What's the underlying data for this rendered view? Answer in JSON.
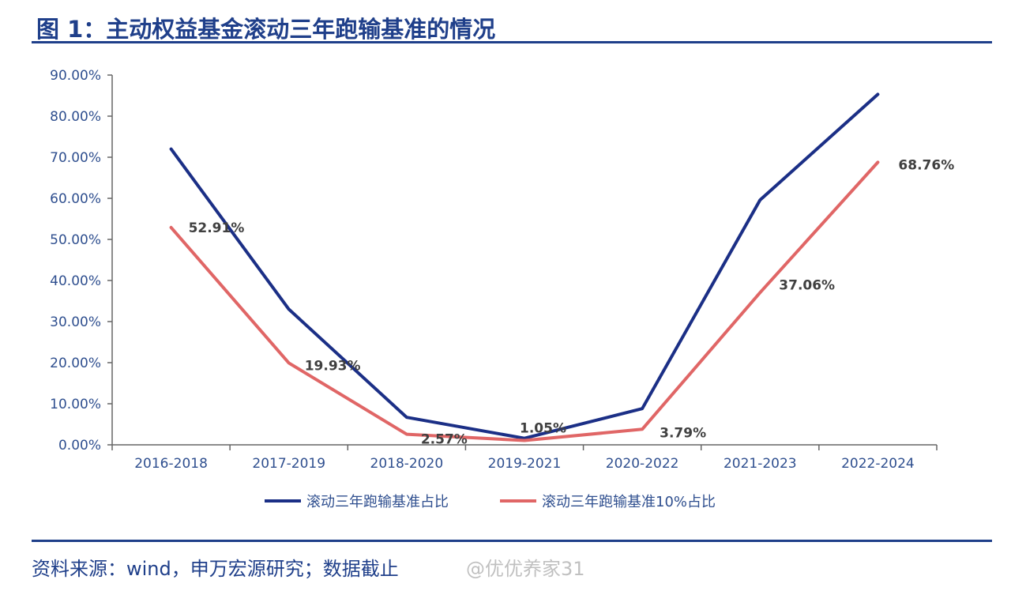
{
  "title": "图 1：主动权益基金滚动三年跑输基准的情况",
  "source": "资料来源：wind，申万宏源研究；数据截止",
  "watermark": "@优优养家31",
  "colors": {
    "brand": "#1f3f8a",
    "series1": "#1b2f86",
    "series2": "#e06666",
    "axis_text": "#2f4f8f",
    "data_label": "#404040"
  },
  "chart_data": {
    "type": "line",
    "categories": [
      "2016-2018",
      "2017-2019",
      "2018-2020",
      "2019-2021",
      "2020-2022",
      "2021-2023",
      "2022-2024"
    ],
    "ylim": [
      0,
      90
    ],
    "yticks": [
      "0.00%",
      "10.00%",
      "20.00%",
      "30.00%",
      "40.00%",
      "50.00%",
      "60.00%",
      "70.00%",
      "80.00%",
      "90.00%"
    ],
    "grid": false,
    "legend_position": "bottom",
    "series": [
      {
        "name": "滚动三年跑输基准占比",
        "values": [
          72.0,
          33.0,
          6.7,
          1.6,
          8.8,
          59.6,
          85.3
        ]
      },
      {
        "name": "滚动三年跑输基准10%占比",
        "values": [
          52.91,
          19.93,
          2.57,
          1.05,
          3.79,
          37.06,
          68.76
        ],
        "data_labels": [
          "52.91%",
          "19.93%",
          "2.57%",
          "1.05%",
          "3.79%",
          "37.06%",
          "68.76%"
        ]
      }
    ]
  }
}
